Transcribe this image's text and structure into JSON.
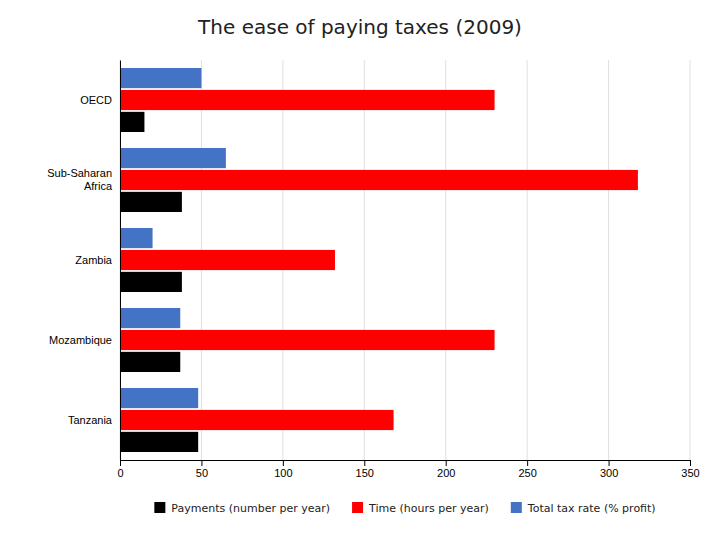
{
  "chart_data": {
    "type": "bar",
    "orientation": "horizontal",
    "title": "The ease of paying taxes (2009)",
    "categories": [
      "Tanzania",
      "Mozambique",
      "Zambia",
      "Sub-Saharan\nAfrica",
      "OECD"
    ],
    "series": [
      {
        "name": "Payments (number per year)",
        "color": "#000000",
        "values": [
          48,
          37,
          38,
          38,
          15
        ]
      },
      {
        "name": "Time (hours per year)",
        "color": "#ff0000",
        "values": [
          168,
          230,
          132,
          318,
          230
        ]
      },
      {
        "name": "Total tax rate (% profit)",
        "color": "#4472c4",
        "values": [
          48,
          37,
          20,
          65,
          50
        ]
      }
    ],
    "xlim": [
      0,
      350
    ],
    "xticks": [
      0,
      50,
      100,
      150,
      200,
      250,
      300,
      350
    ],
    "grid": true,
    "legend": "bottom"
  }
}
